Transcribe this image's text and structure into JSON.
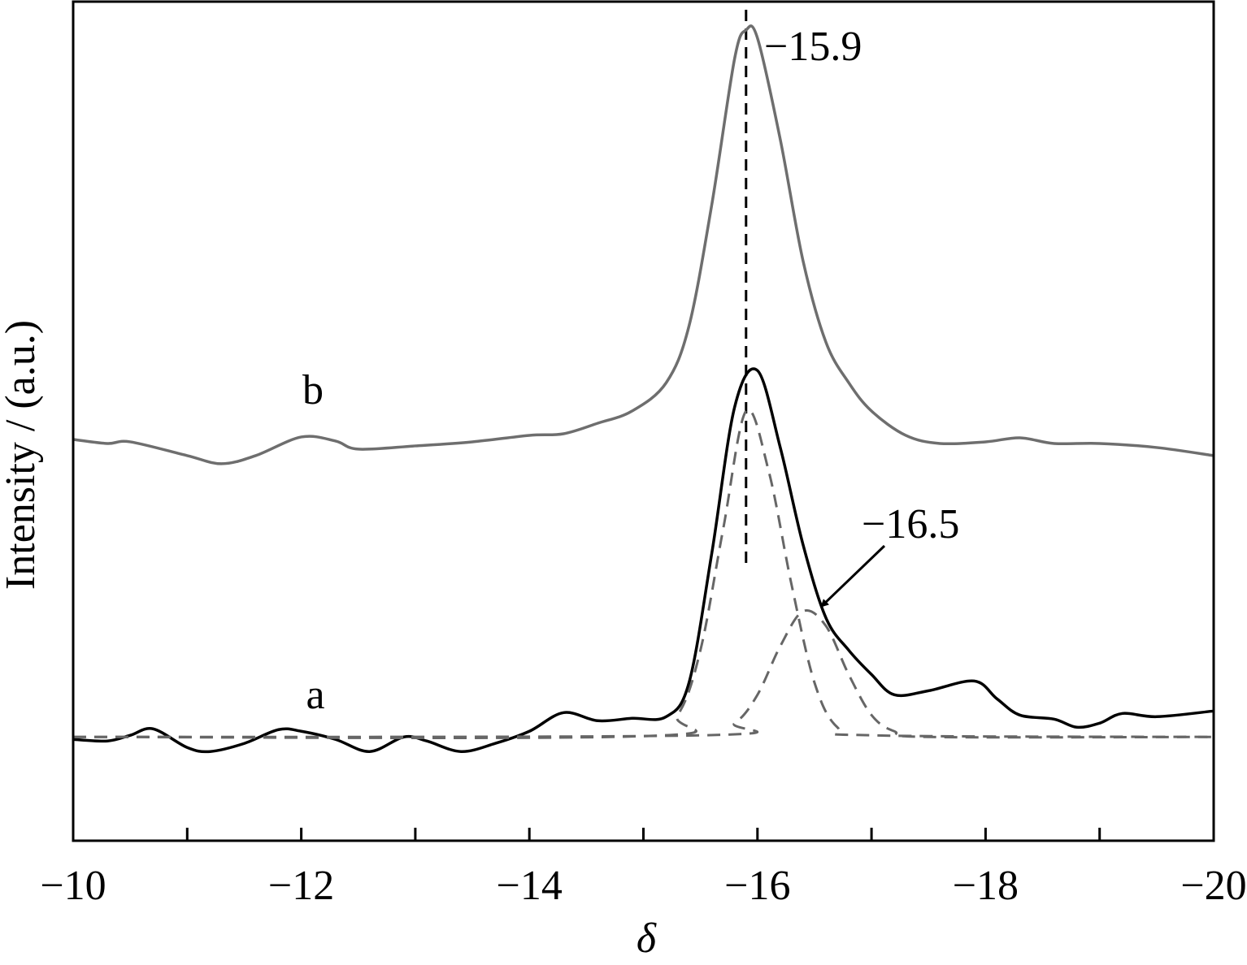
{
  "chart_data": {
    "type": "line",
    "x_label": "δ",
    "y_label": "Intensity / (a.u.)",
    "xlim": [
      -10,
      -20
    ],
    "ylim": [
      0,
      103.5
    ],
    "xticks": [
      {
        "value": -10,
        "label": "−10"
      },
      {
        "value": -12,
        "label": "−12"
      },
      {
        "value": -14,
        "label": "−14"
      },
      {
        "value": -16,
        "label": "−16"
      },
      {
        "value": -18,
        "label": "−18"
      },
      {
        "value": -20,
        "label": "−20"
      }
    ],
    "xminor": [
      -11,
      -13,
      -15,
      -17,
      -19
    ],
    "vline": -15.9,
    "annotations": [
      "−15.9",
      "−16.5"
    ],
    "series": [
      {
        "name": "b",
        "color": "#6e6e6e",
        "dash": false,
        "x": [
          -10,
          -10.3,
          -10.5,
          -11,
          -11.3,
          -11.6,
          -12,
          -12.3,
          -12.5,
          -13,
          -13.5,
          -14,
          -14.3,
          -14.6,
          -14.9,
          -15.2,
          -15.4,
          -15.6,
          -15.8,
          -15.9,
          -16.0,
          -16.2,
          -16.4,
          -16.6,
          -16.8,
          -17.0,
          -17.3,
          -17.6,
          -18,
          -18.3,
          -18.6,
          -19,
          -19.5,
          -20
        ],
        "values": [
          49.5,
          49,
          49.2,
          47.5,
          46.5,
          47.5,
          49.8,
          49.3,
          48.3,
          48.7,
          49.2,
          50,
          50.2,
          51.5,
          53,
          56.5,
          63.5,
          78.5,
          96.5,
          100,
          99,
          86.5,
          71.5,
          61.5,
          56.5,
          53,
          50,
          49,
          49.2,
          49.7,
          49,
          49,
          48.5,
          47.5
        ]
      },
      {
        "name": "a",
        "color": "#000000",
        "dash": false,
        "x": [
          -10,
          -10.3,
          -10.5,
          -10.7,
          -11,
          -11.2,
          -11.5,
          -11.8,
          -12,
          -12.3,
          -12.6,
          -12.9,
          -13.1,
          -13.4,
          -13.7,
          -14,
          -14.3,
          -14.6,
          -14.9,
          -15.2,
          -15.4,
          -15.6,
          -15.8,
          -16.0,
          -16.2,
          -16.4,
          -16.6,
          -16.8,
          -17.0,
          -17.2,
          -17.5,
          -17.9,
          -18.1,
          -18.3,
          -18.6,
          -18.8,
          -19.0,
          -19.2,
          -19.5,
          -20
        ],
        "values": [
          12.5,
          12.3,
          13,
          13.8,
          11.5,
          11,
          12,
          13.7,
          13.5,
          12.5,
          11,
          12.8,
          12.3,
          11,
          12,
          13.5,
          15.8,
          14.8,
          15.1,
          15.3,
          19.5,
          35.5,
          53.5,
          58,
          48.5,
          36.5,
          27.5,
          23.5,
          20.5,
          18,
          18.5,
          19.7,
          17.5,
          15.5,
          15,
          14,
          14.5,
          15.7,
          15.3,
          16
        ]
      },
      {
        "color": "#666666",
        "dash": true,
        "x": [
          -10,
          -15.0,
          -15.3,
          -15.5,
          -15.7,
          -15.9,
          -16.1,
          -16.3,
          -16.5,
          -16.7,
          -17.0,
          -20
        ],
        "values": [
          12.8,
          12.9,
          15.5,
          23.5,
          38.5,
          53,
          45.5,
          31.5,
          19.5,
          14,
          13,
          12.8
        ]
      },
      {
        "color": "#666666",
        "dash": true,
        "x": [
          -10,
          -15.5,
          -15.8,
          -16.0,
          -16.2,
          -16.4,
          -16.6,
          -16.8,
          -17.0,
          -17.2,
          -17.5,
          -20
        ],
        "values": [
          12.8,
          13,
          14.5,
          18,
          24,
          28.3,
          26.5,
          20.5,
          15.5,
          13.5,
          12.8,
          12.8
        ]
      }
    ]
  }
}
